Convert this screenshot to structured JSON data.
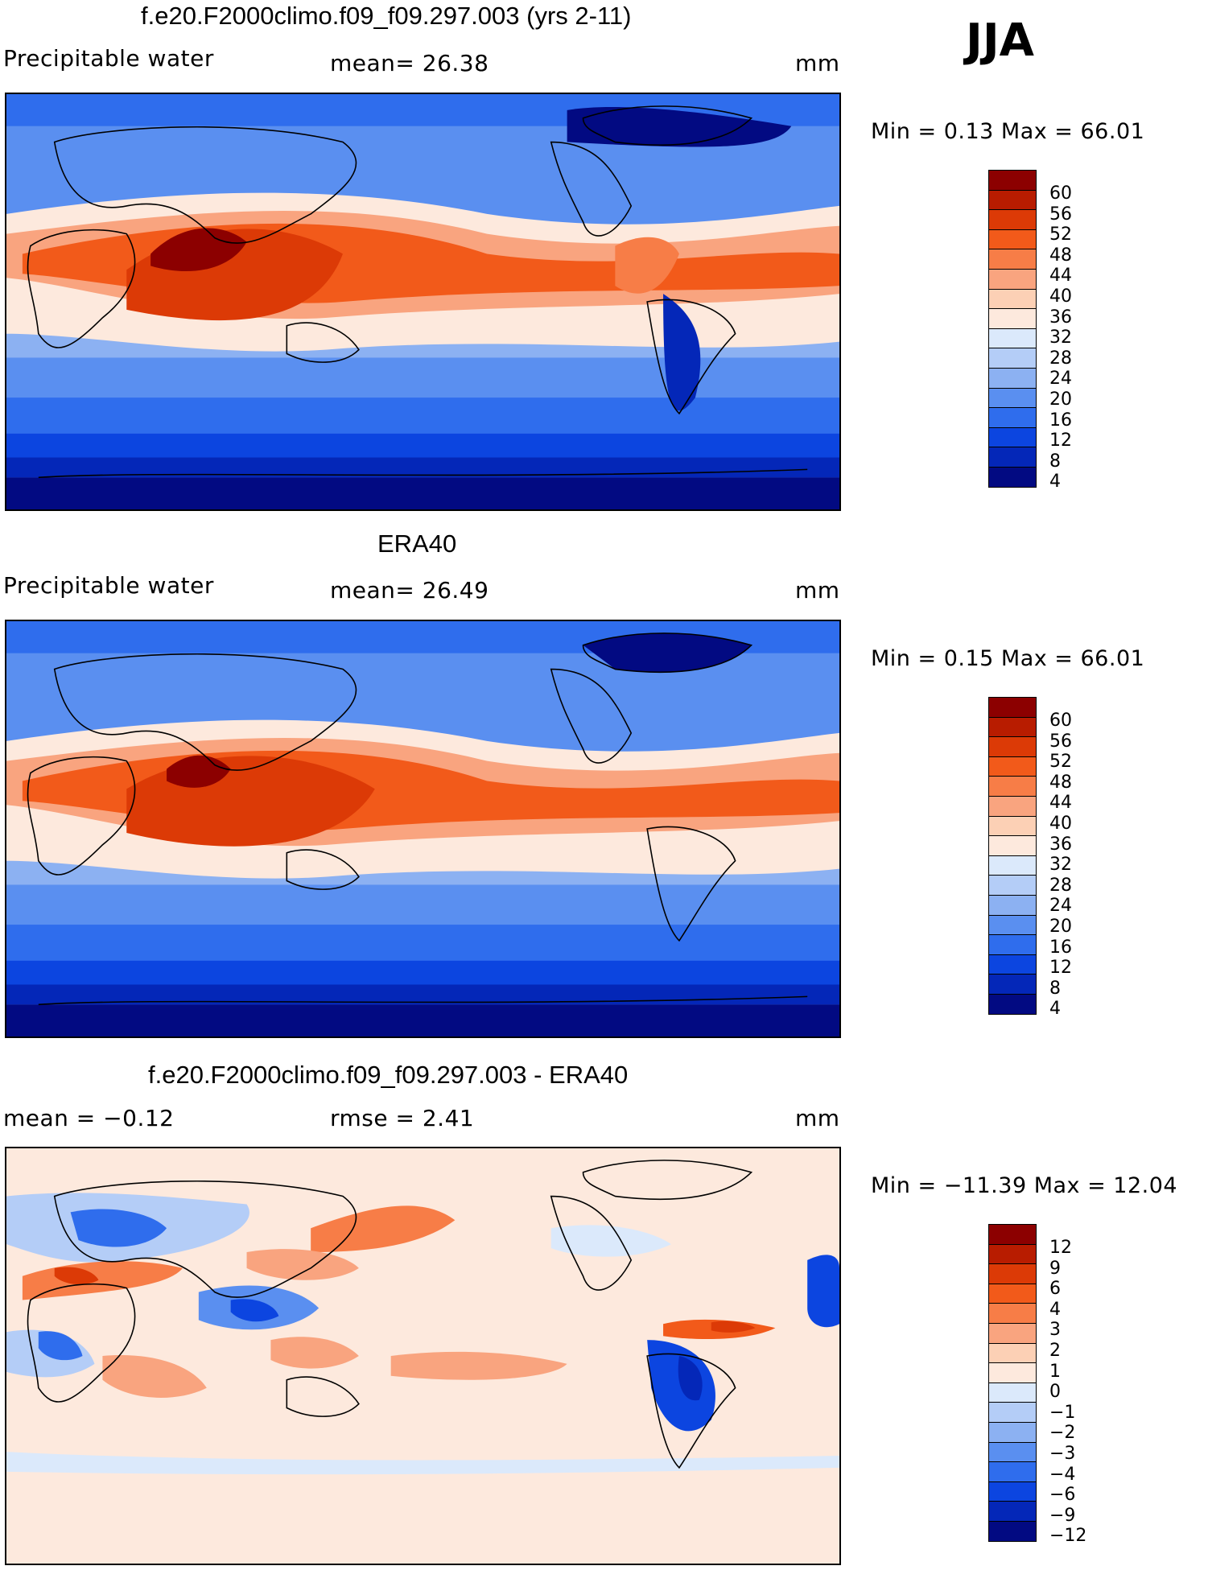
{
  "season": "JJA",
  "panels": [
    {
      "title": "f.e20.F2000climo.f09_f09.297.003 (yrs 2-11)",
      "left_label": "Precipitable  water",
      "center_label": "mean=   26.38",
      "unit": "mm",
      "minmax_label": "Min  =       0.13  Max  =     66.01",
      "palette": "full",
      "colorbar_labels": [
        "60",
        "56",
        "52",
        "48",
        "44",
        "40",
        "36",
        "32",
        "28",
        "24",
        "20",
        "16",
        "12",
        "8",
        "4"
      ]
    },
    {
      "title": "ERA40",
      "left_label": "Precipitable  water",
      "center_label": "mean=   26.49",
      "unit": "mm",
      "minmax_label": "Min  =       0.15  Max  =     66.01",
      "palette": "full",
      "colorbar_labels": [
        "60",
        "56",
        "52",
        "48",
        "44",
        "40",
        "36",
        "32",
        "28",
        "24",
        "20",
        "16",
        "12",
        "8",
        "4"
      ]
    },
    {
      "title": "f.e20.F2000climo.f09_f09.297.003 - ERA40",
      "left_label": "mean  =    −0.12",
      "center_label": "rmse  =      2.41",
      "unit": "mm",
      "minmax_label": "Min  =  −11.39  Max  =     12.04",
      "palette": "diff",
      "colorbar_labels": [
        "12",
        "9",
        "6",
        "4",
        "3",
        "2",
        "1",
        "0",
        "−1",
        "−2",
        "−3",
        "−4",
        "−6",
        "−9",
        "−12"
      ]
    }
  ],
  "colors": {
    "levels": [
      "#8c0000",
      "#b81c00",
      "#dc3a06",
      "#f25a1a",
      "#f77d47",
      "#f9a47f",
      "#fcd0b5",
      "#fde9dd",
      "#dbe9fb",
      "#b4cdf7",
      "#8cb1f2",
      "#5a8ff0",
      "#2f6ded",
      "#0c45e0",
      "#0427b8",
      "#020a82"
    ],
    "diff_levels": [
      "#8c0000",
      "#b81c00",
      "#dc3a06",
      "#f25a1a",
      "#f77d47",
      "#f9a47f",
      "#fcd0b5",
      "#fde9dd",
      "#dbe9fb",
      "#b4cdf7",
      "#8cb1f2",
      "#5a8ff0",
      "#2f6ded",
      "#0c45e0",
      "#0427b8",
      "#020a82"
    ]
  }
}
